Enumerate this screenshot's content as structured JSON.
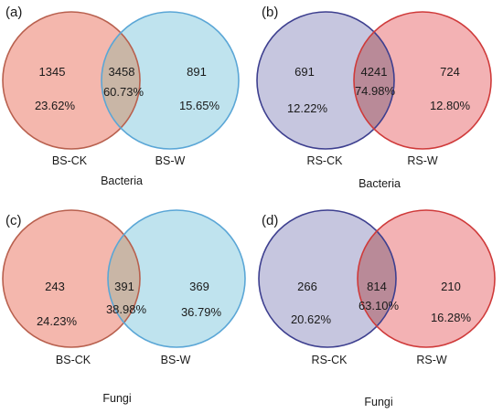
{
  "panels": [
    {
      "label": "(a)",
      "set_left": "BS-CK",
      "set_right": "BS-W",
      "left_count": "1345",
      "left_pct": "23.62%",
      "shared_count": "3458",
      "shared_pct": "60.73%",
      "right_count": "891",
      "right_pct": "15.65%",
      "caption": "Bacteria",
      "colors": {
        "left_fill": "#f4b7ad",
        "left_stroke": "#b8604e",
        "right_fill": "#bfe3ee",
        "right_stroke": "#5aa6d6",
        "overlap_fill": "#c9b6a6"
      }
    },
    {
      "label": "(b)",
      "set_left": "RS-CK",
      "set_right": "RS-W",
      "left_count": "691",
      "left_pct": "12.22%",
      "shared_count": "4241",
      "shared_pct": "74.98%",
      "right_count": "724",
      "right_pct": "12.80%",
      "caption": "Bacteria",
      "colors": {
        "left_fill": "#c6c6df",
        "left_stroke": "#3d3f8f",
        "right_fill": "#f3b2b4",
        "right_stroke": "#cf3a3a",
        "overlap_fill": "#b98a98"
      }
    },
    {
      "label": "(c)",
      "set_left": "BS-CK",
      "set_right": "BS-W",
      "left_count": "243",
      "left_pct": "24.23%",
      "shared_count": "391",
      "shared_pct": "38.98%",
      "right_count": "369",
      "right_pct": "36.79%",
      "caption": "Fungi",
      "colors": {
        "left_fill": "#f4b7ad",
        "left_stroke": "#b8604e",
        "right_fill": "#bfe3ee",
        "right_stroke": "#5aa6d6",
        "overlap_fill": "#c9b6a6"
      }
    },
    {
      "label": "(d)",
      "set_left": "RS-CK",
      "set_right": "RS-W",
      "left_count": "266",
      "left_pct": "20.62%",
      "shared_count": "814",
      "shared_pct": "63.10%",
      "right_count": "210",
      "right_pct": "16.28%",
      "caption": "Fungi",
      "colors": {
        "left_fill": "#c6c6df",
        "left_stroke": "#3d3f8f",
        "right_fill": "#f3b2b4",
        "right_stroke": "#cf3a3a",
        "overlap_fill": "#b98a98"
      }
    }
  ]
}
